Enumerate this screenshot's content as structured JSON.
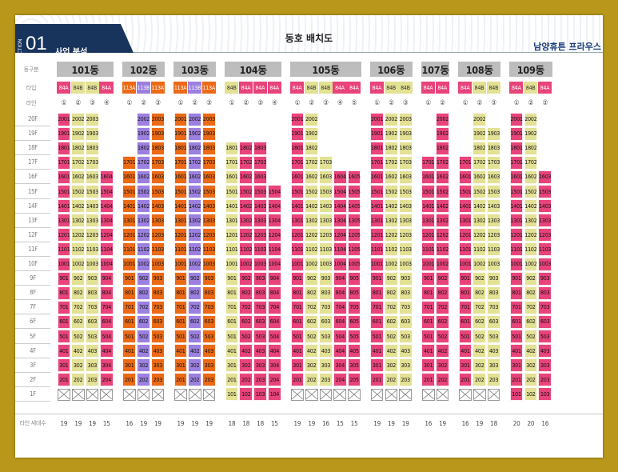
{
  "header": {
    "section_word": "SECTION",
    "section_num": "01",
    "section_name": "사업 분석",
    "title": "동호 배치도",
    "brand": "남양휴튼 프라우스"
  },
  "row_labels": {
    "building": "동구분",
    "type": "타입",
    "line": "라인",
    "count": "라인 세대수"
  },
  "floor_labels": [
    "20F",
    "19F",
    "18F",
    "17F",
    "16F",
    "15F",
    "14F",
    "13F",
    "12F",
    "11F",
    "10F",
    "9F",
    "8F",
    "7F",
    "6F",
    "5F",
    "4F",
    "3F",
    "2F",
    "1F"
  ],
  "colors": {
    "pink": "#e8437a",
    "khaki": "#e3e194",
    "orange": "#ec6a16",
    "purple": "#9c80df",
    "grey": "#bdbdbd"
  },
  "buildings": [
    {
      "name": "101동",
      "lines": [
        {
          "line": "①",
          "type": "84A",
          "color": "pink",
          "top": 20,
          "bottom": 2,
          "count": "19"
        },
        {
          "line": "②",
          "type": "84B",
          "color": "khaki",
          "top": 20,
          "bottom": 2,
          "count": "19"
        },
        {
          "line": "③",
          "type": "84B",
          "color": "khaki",
          "top": 20,
          "bottom": 2,
          "count": "19"
        },
        {
          "line": "④",
          "type": "84A",
          "color": "pink",
          "top": 16,
          "bottom": 2,
          "count": "15"
        }
      ]
    },
    {
      "name": "102동",
      "lines": [
        {
          "line": "①",
          "type": "113A",
          "color": "orange",
          "top": 17,
          "bottom": 2,
          "count": "16"
        },
        {
          "line": "②",
          "type": "113B",
          "color": "purple",
          "top": 20,
          "bottom": 2,
          "count": "19"
        },
        {
          "line": "③",
          "type": "113A",
          "color": "orange",
          "top": 20,
          "bottom": 2,
          "count": "19"
        }
      ]
    },
    {
      "name": "103동",
      "lines": [
        {
          "line": "①",
          "type": "113A",
          "color": "orange",
          "top": 20,
          "bottom": 2,
          "count": "19"
        },
        {
          "line": "②",
          "type": "113B",
          "color": "purple",
          "top": 20,
          "bottom": 2,
          "count": "19"
        },
        {
          "line": "③",
          "type": "113A",
          "color": "orange",
          "top": 20,
          "bottom": 2,
          "count": "19"
        }
      ]
    },
    {
      "name": "104동",
      "lines": [
        {
          "line": "①",
          "type": "84B",
          "color": "khaki",
          "top": 18,
          "bottom": 1,
          "count": "18"
        },
        {
          "line": "②",
          "type": "84A",
          "color": "pink",
          "top": 18,
          "bottom": 1,
          "count": "18"
        },
        {
          "line": "③",
          "type": "84A",
          "color": "pink",
          "top": 18,
          "bottom": 1,
          "count": "18"
        },
        {
          "line": "④",
          "type": "84A",
          "color": "pink",
          "top": 15,
          "bottom": 1,
          "count": "15"
        }
      ]
    },
    {
      "name": "105동",
      "lines": [
        {
          "line": "①",
          "type": "84A",
          "color": "pink",
          "top": 20,
          "bottom": 2,
          "count": "19"
        },
        {
          "line": "②",
          "type": "84B",
          "color": "khaki",
          "top": 20,
          "bottom": 2,
          "count": "19"
        },
        {
          "line": "③",
          "type": "84B",
          "color": "khaki",
          "top": 17,
          "bottom": 2,
          "count": "16"
        },
        {
          "line": "④",
          "type": "84A",
          "color": "pink",
          "top": 16,
          "bottom": 2,
          "count": "15"
        },
        {
          "line": "⑤",
          "type": "84A",
          "color": "pink",
          "top": 16,
          "bottom": 2,
          "count": "15"
        }
      ]
    },
    {
      "name": "106동",
      "lines": [
        {
          "line": "①",
          "type": "84A",
          "color": "pink",
          "top": 20,
          "bottom": 2,
          "count": "19"
        },
        {
          "line": "②",
          "type": "84B",
          "color": "khaki",
          "top": 20,
          "bottom": 2,
          "count": "19"
        },
        {
          "line": "③",
          "type": "84B",
          "color": "khaki",
          "top": 20,
          "bottom": 2,
          "count": "19"
        }
      ]
    },
    {
      "name": "107동",
      "lines": [
        {
          "line": "①",
          "type": "84A",
          "color": "pink",
          "top": 17,
          "bottom": 2,
          "count": "16"
        },
        {
          "line": "②",
          "type": "84A",
          "color": "pink",
          "top": 20,
          "bottom": 2,
          "count": "19"
        }
      ]
    },
    {
      "name": "108동",
      "lines": [
        {
          "line": "①",
          "type": "84A",
          "color": "pink",
          "top": 17,
          "bottom": 2,
          "count": "16"
        },
        {
          "line": "②",
          "type": "84B",
          "color": "khaki",
          "top": 20,
          "bottom": 2,
          "count": "19"
        },
        {
          "line": "③",
          "type": "84B",
          "color": "khaki",
          "top": 19,
          "bottom": 2,
          "count": "18"
        }
      ]
    },
    {
      "name": "109동",
      "lines": [
        {
          "line": "①",
          "type": "84A",
          "color": "pink",
          "top": 20,
          "bottom": 1,
          "count": "20"
        },
        {
          "line": "②",
          "type": "84B",
          "color": "khaki",
          "top": 20,
          "bottom": 1,
          "count": "20"
        },
        {
          "line": "③",
          "type": "84A",
          "color": "pink",
          "top": 16,
          "bottom": 1,
          "count": "16"
        }
      ]
    }
  ]
}
